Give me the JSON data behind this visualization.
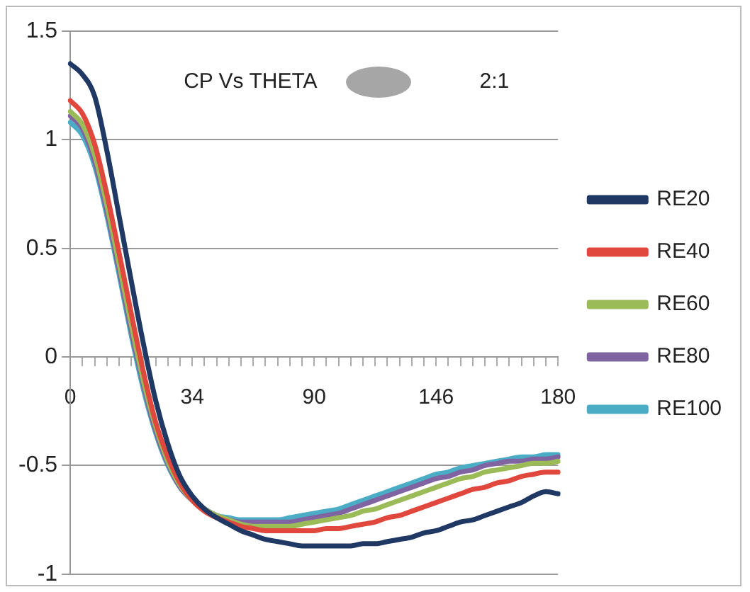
{
  "chart_data": {
    "type": "line",
    "title": "CP Vs THETA",
    "annotations": [
      "2:1"
    ],
    "categories": [
      "0",
      null,
      null,
      null,
      null,
      null,
      null,
      null,
      null,
      null,
      "34",
      null,
      null,
      null,
      null,
      null,
      null,
      null,
      null,
      null,
      "90",
      null,
      null,
      null,
      null,
      null,
      null,
      null,
      null,
      null,
      "146",
      null,
      null,
      null,
      null,
      null,
      null,
      null,
      null,
      null,
      "180"
    ],
    "series": [
      {
        "name": "RE20",
        "color": "#1f3864",
        "values": [
          1.35,
          1.3,
          1.2,
          0.95,
          0.65,
          0.35,
          0.06,
          -0.2,
          -0.4,
          -0.55,
          -0.64,
          -0.7,
          -0.74,
          -0.77,
          -0.8,
          -0.82,
          -0.84,
          -0.85,
          -0.86,
          -0.87,
          -0.87,
          -0.87,
          -0.87,
          -0.87,
          -0.86,
          -0.86,
          -0.85,
          -0.84,
          -0.83,
          -0.81,
          -0.8,
          -0.78,
          -0.76,
          -0.75,
          -0.73,
          -0.71,
          -0.69,
          -0.67,
          -0.64,
          -0.62,
          -0.63
        ]
      },
      {
        "name": "RE40",
        "color": "#e0483e",
        "values": [
          1.18,
          1.12,
          0.98,
          0.75,
          0.48,
          0.2,
          -0.07,
          -0.3,
          -0.46,
          -0.58,
          -0.66,
          -0.71,
          -0.74,
          -0.76,
          -0.78,
          -0.79,
          -0.8,
          -0.8,
          -0.8,
          -0.8,
          -0.8,
          -0.79,
          -0.79,
          -0.78,
          -0.77,
          -0.76,
          -0.74,
          -0.73,
          -0.71,
          -0.69,
          -0.67,
          -0.65,
          -0.63,
          -0.61,
          -0.6,
          -0.58,
          -0.57,
          -0.55,
          -0.54,
          -0.53,
          -0.53
        ]
      },
      {
        "name": "RE60",
        "color": "#9bbb59",
        "values": [
          1.13,
          1.07,
          0.93,
          0.7,
          0.43,
          0.15,
          -0.11,
          -0.32,
          -0.48,
          -0.59,
          -0.66,
          -0.7,
          -0.73,
          -0.75,
          -0.77,
          -0.78,
          -0.78,
          -0.78,
          -0.78,
          -0.77,
          -0.76,
          -0.75,
          -0.74,
          -0.73,
          -0.71,
          -0.7,
          -0.68,
          -0.66,
          -0.64,
          -0.62,
          -0.6,
          -0.58,
          -0.56,
          -0.55,
          -0.53,
          -0.52,
          -0.51,
          -0.5,
          -0.49,
          -0.49,
          -0.48
        ]
      },
      {
        "name": "RE80",
        "color": "#8064a2",
        "values": [
          1.11,
          1.05,
          0.9,
          0.67,
          0.4,
          0.12,
          -0.13,
          -0.34,
          -0.49,
          -0.6,
          -0.66,
          -0.7,
          -0.73,
          -0.75,
          -0.76,
          -0.76,
          -0.76,
          -0.76,
          -0.76,
          -0.75,
          -0.74,
          -0.73,
          -0.72,
          -0.7,
          -0.68,
          -0.66,
          -0.64,
          -0.62,
          -0.6,
          -0.58,
          -0.56,
          -0.55,
          -0.53,
          -0.52,
          -0.5,
          -0.49,
          -0.48,
          -0.48,
          -0.47,
          -0.47,
          -0.46
        ]
      },
      {
        "name": "RE100",
        "color": "#4bacc6",
        "values": [
          1.08,
          1.02,
          0.88,
          0.65,
          0.38,
          0.1,
          -0.15,
          -0.35,
          -0.5,
          -0.6,
          -0.66,
          -0.7,
          -0.73,
          -0.74,
          -0.75,
          -0.75,
          -0.75,
          -0.75,
          -0.74,
          -0.73,
          -0.72,
          -0.71,
          -0.7,
          -0.68,
          -0.66,
          -0.64,
          -0.62,
          -0.6,
          -0.58,
          -0.56,
          -0.54,
          -0.53,
          -0.51,
          -0.5,
          -0.49,
          -0.48,
          -0.47,
          -0.46,
          -0.46,
          -0.45,
          -0.45
        ]
      }
    ],
    "ylim": [
      -1,
      1.5
    ],
    "yticks": [
      -1,
      -0.5,
      0,
      0.5,
      1,
      1.5
    ],
    "grid": "y",
    "legend": "right",
    "marker": "none",
    "line_style": "solid"
  }
}
